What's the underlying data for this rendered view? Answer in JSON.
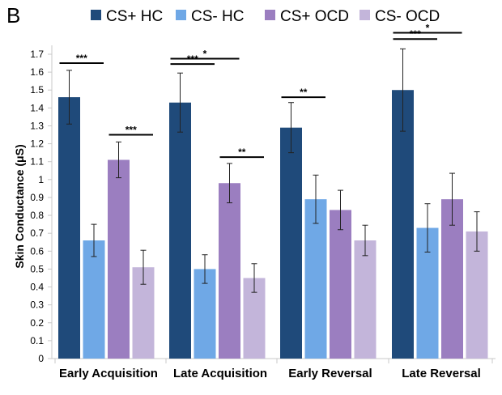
{
  "panel_label": "B",
  "chart_data": {
    "type": "bar",
    "title": "",
    "xlabel": "",
    "ylabel": "Skin Conductance (μS)",
    "ylim": [
      0,
      1.75
    ],
    "yticks": [
      "0",
      "0.1",
      "0.2",
      "0.3",
      "0.4",
      "0.5",
      "0.6",
      "0.7",
      "0.8",
      "0.9",
      "1",
      "1.1",
      "1.2",
      "1.3",
      "1.4",
      "1.5",
      "1.6",
      "1.7"
    ],
    "grid": false,
    "legend_position": "top",
    "categories": [
      "Early Acquisition",
      "Late Acquisition",
      "Early Reversal",
      "Late Reversal"
    ],
    "series": [
      {
        "name": "CS+ HC",
        "color": "#1f4a7a",
        "values": [
          1.46,
          1.43,
          1.29,
          1.5
        ],
        "errors": [
          0.15,
          0.165,
          0.14,
          0.23
        ]
      },
      {
        "name": "CS- HC",
        "color": "#6fa8e6",
        "values": [
          0.66,
          0.5,
          0.89,
          0.73
        ],
        "errors": [
          0.09,
          0.08,
          0.135,
          0.135
        ]
      },
      {
        "name": "CS+ OCD",
        "color": "#9b7ec0",
        "values": [
          1.11,
          0.98,
          0.83,
          0.89
        ],
        "errors": [
          0.1,
          0.11,
          0.11,
          0.145
        ]
      },
      {
        "name": "CS- OCD",
        "color": "#c3b5da",
        "values": [
          0.51,
          0.45,
          0.66,
          0.71
        ],
        "errors": [
          0.095,
          0.08,
          0.085,
          0.11
        ]
      }
    ],
    "annotations": [
      {
        "category": 0,
        "from_series": 0,
        "to_series": 1,
        "y": 1.65,
        "label": "***"
      },
      {
        "category": 0,
        "from_series": 2,
        "to_series": 3,
        "y": 1.25,
        "label": "***"
      },
      {
        "category": 1,
        "from_series": 0,
        "to_series": 1,
        "y": 1.645,
        "label": "***"
      },
      {
        "category": 1,
        "from_series": 0,
        "to_series": 2,
        "y": 1.675,
        "label": "*"
      },
      {
        "category": 1,
        "from_series": 2,
        "to_series": 3,
        "y": 1.125,
        "label": "**"
      },
      {
        "category": 2,
        "from_series": 0,
        "to_series": 1,
        "y": 1.46,
        "label": "**"
      },
      {
        "category": 3,
        "from_series": 0,
        "to_series": 1,
        "y": 1.785,
        "label": "***"
      },
      {
        "category": 3,
        "from_series": 0,
        "to_series": 2,
        "y": 1.82,
        "label": "*"
      }
    ]
  }
}
